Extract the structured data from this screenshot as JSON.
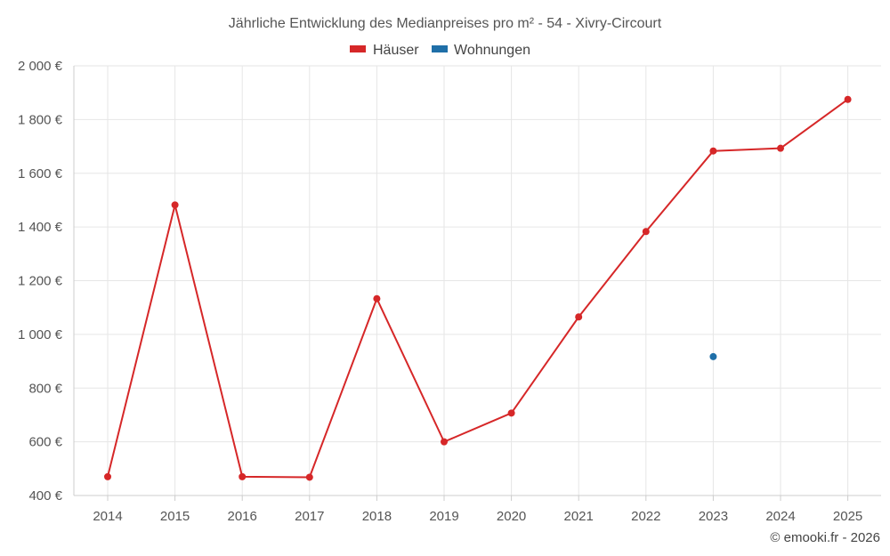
{
  "chart_data": {
    "type": "line",
    "title": "Jährliche Entwicklung des Medianpreises pro m² - 54 - Xivry-Circourt",
    "categories": [
      "2014",
      "2015",
      "2016",
      "2017",
      "2018",
      "2019",
      "2020",
      "2021",
      "2022",
      "2023",
      "2024",
      "2025"
    ],
    "series": [
      {
        "name": "Häuser",
        "color": "#d62728",
        "values": [
          470,
          1482,
          470,
          468,
          1133,
          600,
          707,
          1065,
          1383,
          1683,
          1693,
          1875
        ]
      },
      {
        "name": "Wohnungen",
        "color": "#1f6fa8",
        "values": [
          null,
          null,
          null,
          null,
          null,
          null,
          null,
          null,
          null,
          917,
          null,
          null
        ]
      }
    ],
    "ylim": [
      400,
      2000
    ],
    "yticks": [
      400,
      600,
      800,
      1000,
      1200,
      1400,
      1600,
      1800,
      2000
    ],
    "ytick_labels": [
      "400 €",
      "600 €",
      "800 €",
      "1 000 €",
      "1 200 €",
      "1 400 €",
      "1 600 €",
      "1 800 €",
      "2 000 €"
    ],
    "grid": true,
    "legend_position": "top-center"
  },
  "credit": "© emooki.fr - 2026"
}
